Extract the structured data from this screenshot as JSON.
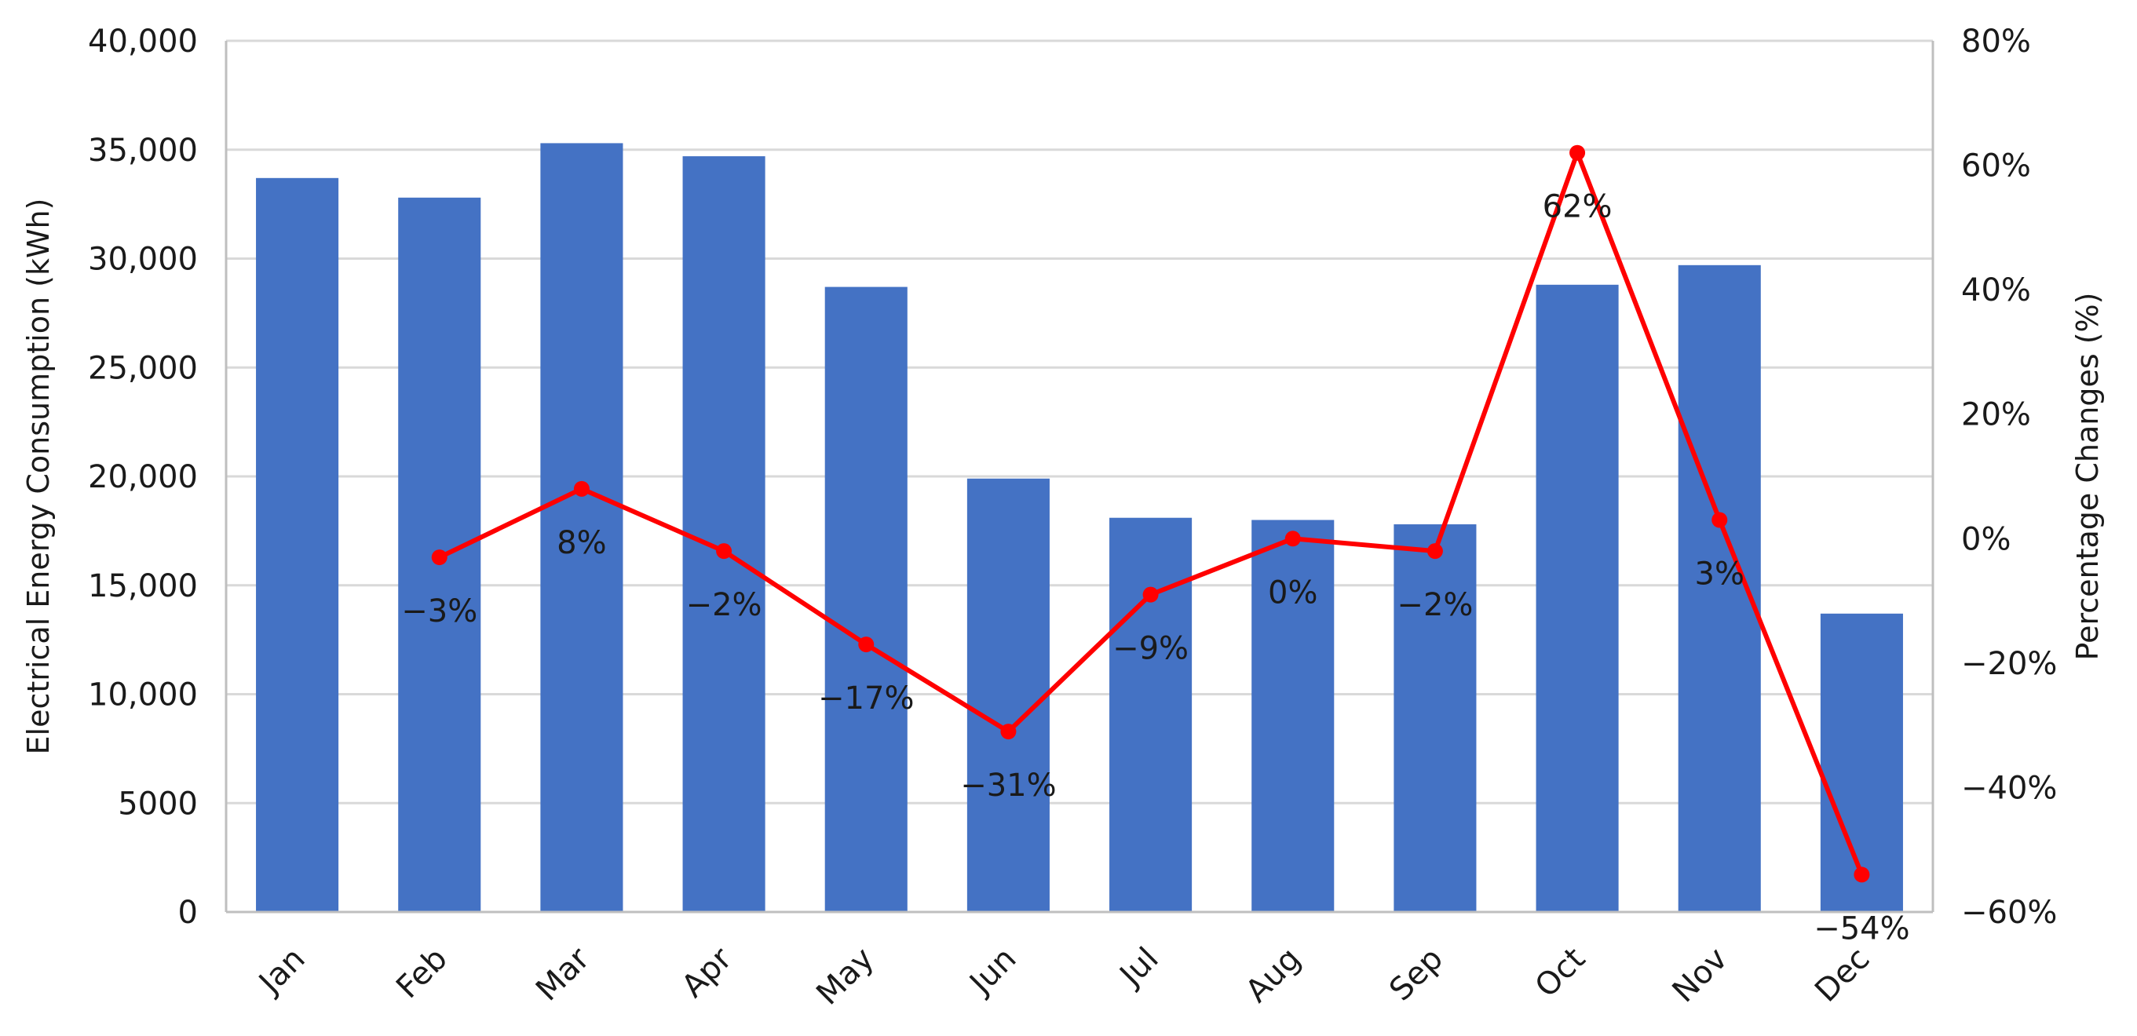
{
  "chart_data": {
    "type": "bar",
    "categories": [
      "Jan",
      "Feb",
      "Mar",
      "Apr",
      "May",
      "Jun",
      "Jul",
      "Aug",
      "Sep",
      "Oct",
      "Nov",
      "Dec"
    ],
    "series": [
      {
        "type": "bar",
        "axis": "left",
        "values": [
          33700,
          32800,
          35300,
          34700,
          28700,
          19900,
          18100,
          18000,
          17800,
          28800,
          29700,
          13700
        ],
        "color": "#4472C4"
      },
      {
        "type": "line",
        "axis": "right",
        "values": [
          null,
          -3,
          8,
          -2,
          -17,
          -31,
          -9,
          0,
          -2,
          62,
          3,
          -54
        ],
        "labels": [
          "",
          "−3%",
          "8%",
          "−2%",
          "−17%",
          "−31%",
          "−9%",
          "0%",
          "−2%",
          "62%",
          "3%",
          "−54%"
        ],
        "color": "#FF0000"
      }
    ],
    "ylabel": "Electrical Energy Consumption (kWh)",
    "y2label": "Percentage Changes (%)",
    "ylim": [
      0,
      40000
    ],
    "y2lim": [
      -60,
      80
    ],
    "yticks": [
      0,
      5000,
      10000,
      15000,
      20000,
      25000,
      30000,
      35000,
      40000
    ],
    "ytick_labels": [
      "0",
      "5000",
      "10,000",
      "15,000",
      "20,000",
      "25,000",
      "30,000",
      "35,000",
      "40,000"
    ],
    "y2ticks": [
      -60,
      -40,
      -20,
      0,
      20,
      40,
      60,
      80
    ],
    "y2tick_labels": [
      "−60%",
      "−40%",
      "−20%",
      "0%",
      "20%",
      "40%",
      "60%",
      "80%"
    ],
    "grid": true,
    "legend": "none"
  }
}
